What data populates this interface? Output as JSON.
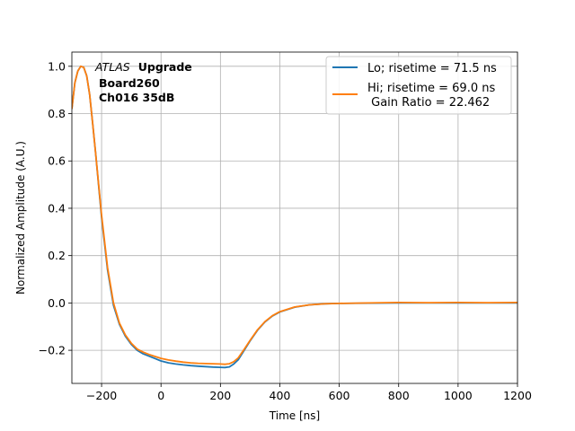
{
  "chart_data": {
    "type": "line",
    "title": "",
    "xlabel": "Time [ns]",
    "ylabel": "Normalized Amplitude (A.U.)",
    "xlim": [
      -300,
      1200
    ],
    "ylim": [
      -0.34,
      1.06
    ],
    "xticks": [
      -200,
      0,
      200,
      400,
      600,
      800,
      1000,
      1200
    ],
    "yticks": [
      -0.2,
      0.0,
      0.2,
      0.4,
      0.6,
      0.8,
      1.0
    ],
    "xtick_labels": [
      "−200",
      "0",
      "200",
      "400",
      "600",
      "800",
      "1000",
      "1200"
    ],
    "ytick_labels": [
      "−0.2",
      "0.0",
      "0.2",
      "0.4",
      "0.6",
      "0.8",
      "1.0"
    ],
    "grid": true,
    "legend_position": "top-right",
    "annotation": {
      "experiment": "ATLAS",
      "tag": "Upgrade",
      "board": "Board260",
      "channel": "Ch016 35dB"
    },
    "series": [
      {
        "name": "Lo; risetime = 71.5 ns",
        "color": "#1f77b4",
        "x": [
          -300,
          -290,
          -280,
          -270,
          -260,
          -250,
          -240,
          -230,
          -220,
          -200,
          -180,
          -160,
          -140,
          -120,
          -100,
          -80,
          -60,
          -40,
          -20,
          0,
          25,
          50,
          75,
          100,
          125,
          150,
          175,
          200,
          215,
          230,
          245,
          260,
          280,
          300,
          325,
          350,
          375,
          400,
          450,
          500,
          550,
          600,
          700,
          800,
          900,
          1000,
          1100,
          1200
        ],
        "y": [
          0.82,
          0.93,
          0.98,
          1.0,
          0.995,
          0.96,
          0.88,
          0.76,
          0.63,
          0.36,
          0.14,
          -0.01,
          -0.09,
          -0.14,
          -0.175,
          -0.2,
          -0.215,
          -0.225,
          -0.235,
          -0.245,
          -0.253,
          -0.258,
          -0.262,
          -0.265,
          -0.267,
          -0.269,
          -0.271,
          -0.272,
          -0.273,
          -0.27,
          -0.258,
          -0.24,
          -0.2,
          -0.16,
          -0.115,
          -0.08,
          -0.055,
          -0.038,
          -0.018,
          -0.008,
          -0.004,
          -0.002,
          -0.001,
          0.0,
          0.0,
          0.0,
          0.0,
          0.0
        ]
      },
      {
        "name": "Hi; risetime = 69.0 ns",
        "name_line2": " Gain Ratio = 22.462",
        "color": "#ff7f0e",
        "x": [
          -300,
          -290,
          -280,
          -270,
          -260,
          -250,
          -240,
          -230,
          -220,
          -200,
          -180,
          -160,
          -140,
          -120,
          -100,
          -80,
          -60,
          -40,
          -20,
          0,
          25,
          50,
          75,
          100,
          125,
          150,
          175,
          200,
          215,
          230,
          245,
          260,
          280,
          300,
          325,
          350,
          375,
          400,
          450,
          500,
          550,
          600,
          700,
          800,
          900,
          1000,
          1100,
          1200
        ],
        "y": [
          0.82,
          0.93,
          0.98,
          1.0,
          0.995,
          0.96,
          0.88,
          0.76,
          0.63,
          0.37,
          0.15,
          0.0,
          -0.085,
          -0.135,
          -0.17,
          -0.195,
          -0.208,
          -0.218,
          -0.226,
          -0.234,
          -0.241,
          -0.246,
          -0.25,
          -0.253,
          -0.255,
          -0.256,
          -0.257,
          -0.258,
          -0.259,
          -0.257,
          -0.248,
          -0.232,
          -0.196,
          -0.158,
          -0.113,
          -0.079,
          -0.054,
          -0.037,
          -0.017,
          -0.008,
          -0.004,
          -0.002,
          0.0,
          0.002,
          0.001,
          0.002,
          0.001,
          0.002
        ]
      }
    ]
  }
}
